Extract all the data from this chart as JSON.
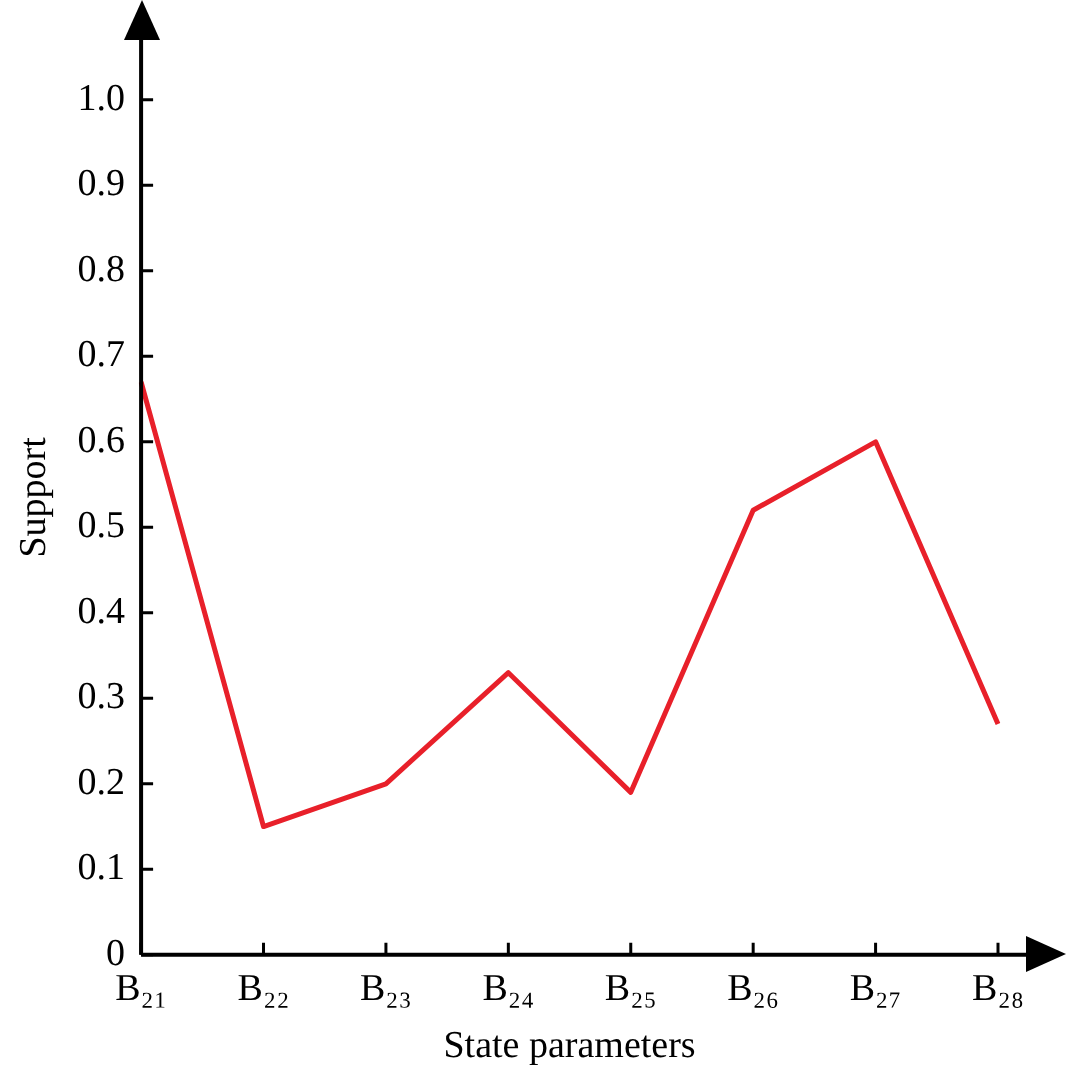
{
  "chart_data": {
    "type": "line",
    "xlabel": "State parameters",
    "ylabel": "Support",
    "categories": [
      "B₂₁",
      "B₂₂",
      "B₂₃",
      "B₂₄",
      "B₂₅",
      "B₂₆",
      "B₂₇",
      "B₂₈"
    ],
    "series": [
      {
        "color": "#e8202a",
        "values": [
          0.67,
          0.15,
          0.2,
          0.33,
          0.19,
          0.52,
          0.6,
          0.27
        ]
      }
    ],
    "ylim": [
      0,
      1.07
    ],
    "yticks": [
      0,
      0.1,
      0.2,
      0.3,
      0.4,
      0.5,
      0.6,
      0.7,
      0.8,
      0.9,
      {
        "value": 1,
        "label": "1.0"
      }
    ],
    "grid": false,
    "legend": false,
    "marker": "none",
    "line_style": "solid"
  }
}
